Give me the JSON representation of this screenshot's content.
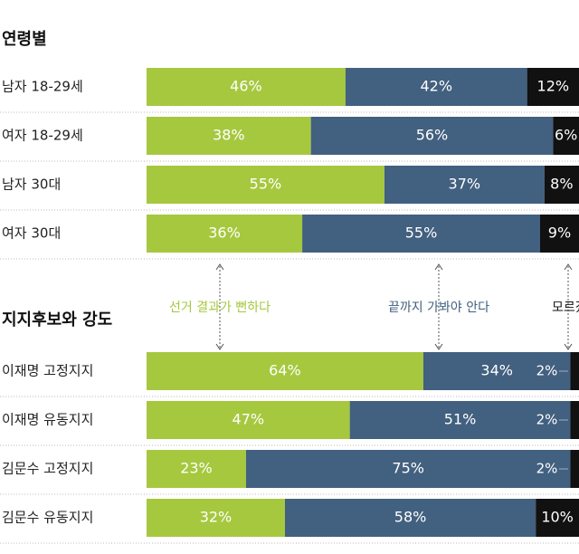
{
  "chart_data": [
    {
      "type": "bar",
      "orientation": "horizontal",
      "stacked": true,
      "title": "연령별",
      "categories": [
        "남자 18-29세",
        "여자 18-29세",
        "남자 30대",
        "여자 30대"
      ],
      "xlim": [
        0,
        100
      ],
      "series": [
        {
          "color": "#a6c83f",
          "values": [
            46,
            38,
            55,
            36
          ],
          "value_labels": [
            "46%",
            "38%",
            "55%",
            "36%"
          ]
        },
        {
          "color": "#42607f",
          "values": [
            42,
            56,
            37,
            55
          ],
          "value_labels": [
            "42%",
            "56%",
            "37%",
            "55%"
          ]
        },
        {
          "color": "#111111",
          "values": [
            12,
            6,
            8,
            9
          ],
          "value_labels": [
            "12%",
            "6%",
            "8%",
            "9%"
          ]
        }
      ]
    },
    {
      "type": "bar",
      "orientation": "horizontal",
      "stacked": true,
      "title": "지지후보와 강도",
      "categories": [
        "이재명 고정지지",
        "이재명 유동지지",
        "김문수 고정지지",
        "김문수 유동지지"
      ],
      "xlim": [
        0,
        100
      ],
      "series": [
        {
          "name": "선거 결과가 뻔하다",
          "color": "#a6c83f",
          "values": [
            64,
            47,
            23,
            32
          ],
          "value_labels": [
            "64%",
            "47%",
            "23%",
            "32%"
          ]
        },
        {
          "name": "끝까지 가봐야 안다",
          "color": "#42607f",
          "values": [
            34,
            51,
            75,
            58
          ],
          "value_labels": [
            "34%",
            "51%",
            "75%",
            "58%"
          ]
        },
        {
          "name": "모르겠다",
          "color": "#111111",
          "values": [
            2,
            2,
            2,
            10
          ],
          "value_labels": [
            "2%",
            "2%",
            "2%",
            "10%"
          ]
        }
      ]
    }
  ]
}
